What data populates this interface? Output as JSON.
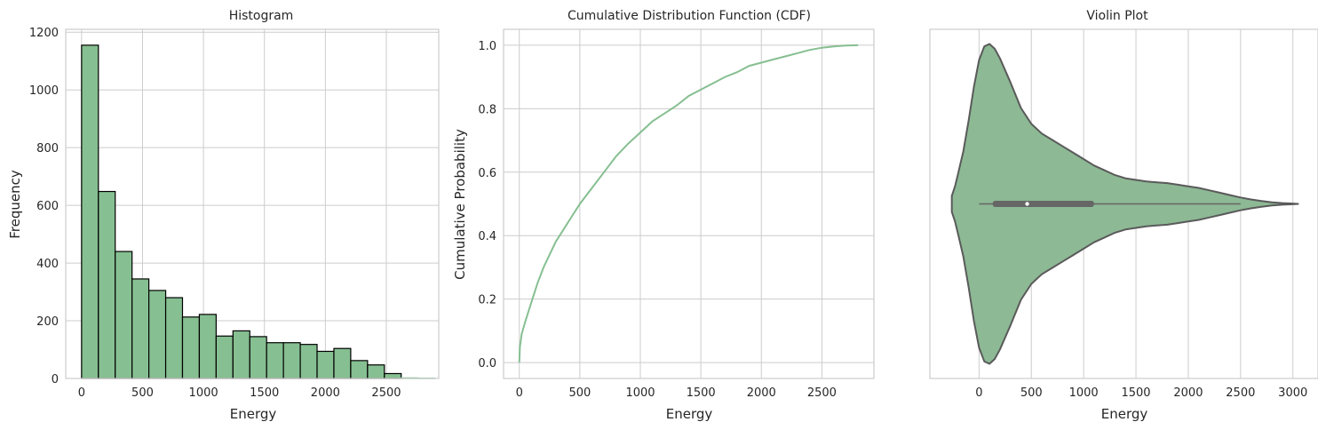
{
  "chart_data": [
    {
      "type": "bar",
      "title": "Histogram",
      "xlabel": "Energy",
      "ylabel": "Frequency",
      "xlim": [
        -130,
        2930
      ],
      "ylim": [
        0,
        1210
      ],
      "xticks": [
        0,
        500,
        1000,
        1500,
        2000,
        2500
      ],
      "yticks": [
        0,
        200,
        400,
        600,
        800,
        1000,
        1200
      ],
      "bin_width": 138,
      "bin_starts": [
        0,
        138,
        276,
        414,
        552,
        690,
        828,
        966,
        1104,
        1242,
        1380,
        1518,
        1656,
        1794,
        1932,
        2070,
        2208,
        2346,
        2484,
        2622,
        2760
      ],
      "values": [
        1155,
        648,
        440,
        345,
        305,
        280,
        213,
        222,
        147,
        165,
        145,
        124,
        124,
        118,
        94,
        104,
        62,
        47,
        17,
        2,
        1
      ],
      "color": "#86bf91",
      "edgecolor": "#000000",
      "grid": true
    },
    {
      "type": "line",
      "title": "Cumulative Distribution Function (CDF)",
      "xlabel": "Energy",
      "ylabel": "Cumulative Probability",
      "xlim": [
        -130,
        2930
      ],
      "ylim": [
        -0.05,
        1.05
      ],
      "xticks": [
        0,
        500,
        1000,
        1500,
        2000,
        2500
      ],
      "yticks": [
        0.0,
        0.2,
        0.4,
        0.6,
        0.8,
        1.0
      ],
      "x": [
        0,
        5,
        20,
        50,
        100,
        150,
        200,
        250,
        300,
        400,
        500,
        600,
        700,
        800,
        900,
        1000,
        1100,
        1200,
        1300,
        1400,
        1500,
        1600,
        1700,
        1800,
        1900,
        2000,
        2100,
        2200,
        2300,
        2400,
        2500,
        2600,
        2700,
        2800
      ],
      "y": [
        0.0,
        0.05,
        0.09,
        0.13,
        0.19,
        0.25,
        0.3,
        0.34,
        0.38,
        0.44,
        0.5,
        0.55,
        0.6,
        0.65,
        0.69,
        0.725,
        0.76,
        0.785,
        0.81,
        0.84,
        0.86,
        0.88,
        0.9,
        0.915,
        0.935,
        0.945,
        0.955,
        0.965,
        0.975,
        0.985,
        0.992,
        0.996,
        0.999,
        1.0
      ],
      "color": "#86bf91",
      "grid": true
    },
    {
      "type": "violin",
      "title": "Violin Plot",
      "xlabel": "Energy",
      "xlim": [
        -470,
        3240
      ],
      "xticks": [
        0,
        500,
        1000,
        1500,
        2000,
        2500,
        3000
      ],
      "box": {
        "whisker_low": 0,
        "q1": 130,
        "median": 460,
        "q3": 1100,
        "whisker_high": 2500
      },
      "density_x": [
        -260,
        -230,
        -200,
        -150,
        -100,
        -50,
        0,
        50,
        100,
        150,
        200,
        300,
        400,
        500,
        600,
        700,
        800,
        900,
        1000,
        1100,
        1200,
        1300,
        1400,
        1500,
        1600,
        1700,
        1800,
        1900,
        2000,
        2100,
        2200,
        2300,
        2400,
        2500,
        2600,
        2700,
        2800,
        2900,
        3000,
        3050
      ],
      "density": [
        0.05,
        0.11,
        0.19,
        0.33,
        0.52,
        0.73,
        0.9,
        0.985,
        1.0,
        0.97,
        0.91,
        0.76,
        0.6,
        0.5,
        0.44,
        0.4,
        0.36,
        0.32,
        0.28,
        0.24,
        0.21,
        0.18,
        0.16,
        0.15,
        0.14,
        0.135,
        0.13,
        0.12,
        0.11,
        0.1,
        0.085,
        0.07,
        0.055,
        0.04,
        0.028,
        0.018,
        0.01,
        0.005,
        0.002,
        0.0
      ],
      "fill": "#8db995",
      "edgecolor": "#5a5a5a",
      "grid": true
    }
  ]
}
